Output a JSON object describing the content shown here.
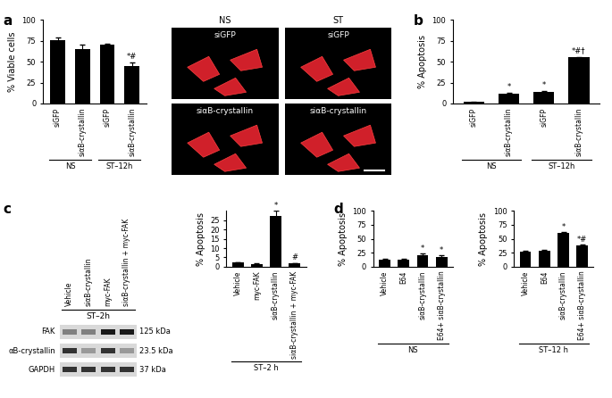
{
  "panel_labels": [
    "a",
    "b",
    "c",
    "d"
  ],
  "chart_data": [
    {
      "type": "bar",
      "ylabel": "% Viable cells",
      "categories": [
        "siGFP",
        "siαB-crystallin",
        "siGFP",
        "siαB-crystallin"
      ],
      "group_labels": [
        "NS",
        "NS",
        "ST–12h",
        "ST–12h"
      ],
      "values": [
        76,
        65,
        70,
        45
      ],
      "errors": [
        3,
        5,
        1,
        4
      ],
      "annotations": [
        null,
        null,
        null,
        "*#"
      ],
      "color": "#000000",
      "ylim": [
        0,
        100
      ],
      "yticks": [
        0,
        25,
        50,
        75,
        100
      ],
      "grid": false
    },
    {
      "type": "bar",
      "ylabel": "% Apoptosis",
      "categories": [
        "siGFP",
        "siαB-crystallin",
        "siGFP",
        "siαB-crystallin"
      ],
      "group_labels": [
        "NS",
        "NS",
        "ST–12h",
        "ST–12h"
      ],
      "values": [
        2,
        12,
        14,
        55
      ],
      "errors": [
        0.5,
        1,
        1,
        1
      ],
      "annotations": [
        null,
        "*",
        "*",
        "*#†"
      ],
      "color": "#000000",
      "ylim": [
        0,
        100
      ],
      "yticks": [
        0,
        25,
        50,
        75,
        100
      ],
      "grid": false
    },
    {
      "type": "bar",
      "ylabel": "% Apoptosis",
      "categories": [
        "Vehicle",
        "myc-FAK",
        "siαB-crystallin",
        "siαB-crystallin + myc-FAK"
      ],
      "group_labels": [
        "ST–2 h",
        "ST–2 h",
        "ST–2 h",
        "ST–2 h"
      ],
      "values": [
        2.3,
        1.2,
        27.5,
        1.8
      ],
      "errors": [
        0.2,
        0.5,
        2.5,
        0.2
      ],
      "annotations": [
        null,
        null,
        "*",
        "#"
      ],
      "color": "#000000",
      "ylim": [
        0,
        30
      ],
      "yticks": [
        0,
        5,
        10,
        15,
        20,
        25
      ],
      "grid": false
    },
    {
      "type": "bar",
      "ylabel": "% Apoptosis",
      "categories": [
        "Vehicle",
        "E64",
        "siαB-crystallin",
        "E64+ siαB-crystallin"
      ],
      "group_labels": [
        "NS",
        "NS",
        "NS",
        "NS"
      ],
      "values": [
        12,
        12,
        20,
        17
      ],
      "errors": [
        2,
        2,
        3,
        3
      ],
      "annotations": [
        null,
        null,
        "*",
        "*"
      ],
      "color": "#000000",
      "ylim": [
        0,
        100
      ],
      "yticks": [
        0,
        25,
        50,
        75,
        100
      ],
      "grid": false
    },
    {
      "type": "bar",
      "ylabel": "% Apoptosis",
      "categories": [
        "Vehicle",
        "E64",
        "siαB-crystallin",
        "E64+ siαB-crystallin"
      ],
      "group_labels": [
        "ST–12 h",
        "ST–12 h",
        "ST–12 h",
        "ST–12 h"
      ],
      "values": [
        27,
        29,
        61,
        38
      ],
      "errors": [
        1,
        1.5,
        1,
        1
      ],
      "annotations": [
        null,
        null,
        "*",
        "*#"
      ],
      "color": "#000000",
      "ylim": [
        0,
        100
      ],
      "yticks": [
        0,
        25,
        50,
        75,
        100
      ],
      "grid": false
    }
  ],
  "images": {
    "columns": [
      "NS",
      "ST"
    ],
    "rows": [
      "siGFP",
      "siαB-crystallin"
    ]
  },
  "blot": {
    "header": "ST–2h",
    "lanes": [
      "Vehicle",
      "siαB-crystallin",
      "myc-FAK",
      "siαB-crystallin + myc-FAK"
    ],
    "rows": [
      {
        "name": "FAK",
        "size": "125 kDa",
        "intensity": [
          0.5,
          0.5,
          0.9,
          0.9
        ]
      },
      {
        "name": "αB-crystallin",
        "size": "23.5 kDa",
        "intensity": [
          0.8,
          0.4,
          0.8,
          0.4
        ]
      },
      {
        "name": "GAPDH",
        "size": "37 kDa",
        "intensity": [
          0.8,
          0.8,
          0.8,
          0.8
        ]
      }
    ]
  }
}
